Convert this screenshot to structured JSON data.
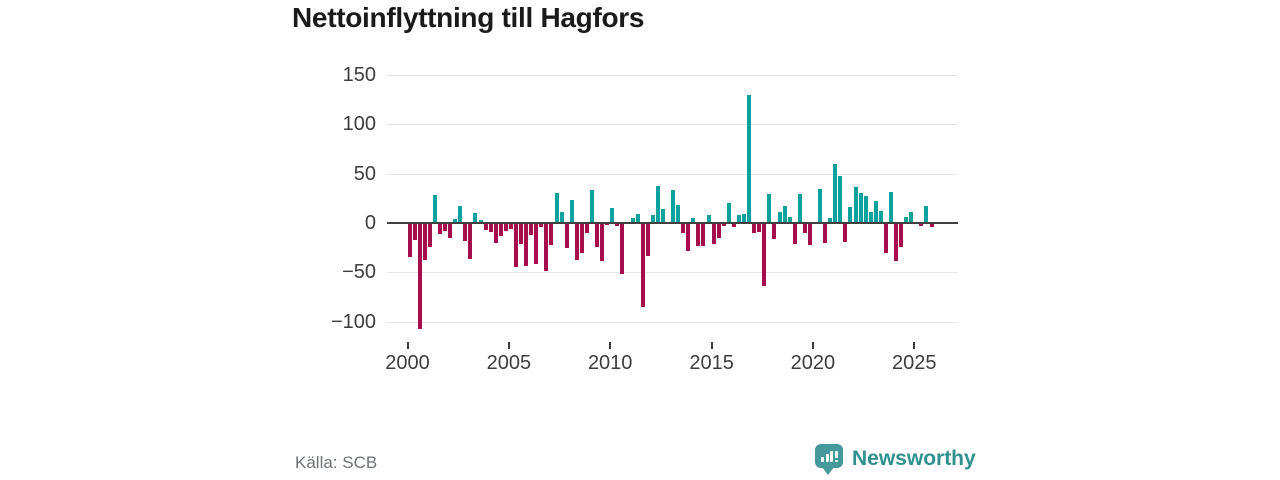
{
  "header": {
    "title": "Nettoinflyttning till Hagfors"
  },
  "footer": {
    "source": "Källa: SCB",
    "brand": "Newsworthy"
  },
  "colors": {
    "positive_bar": "#0ba29d",
    "negative_bar": "#a60d4d",
    "gridline": "#e6e6e6",
    "zero_line": "#404040",
    "axis_text": "#3d3d3d",
    "title_text": "#1a1a1a",
    "source_text": "#6e7278",
    "brand_teal": "#45999b",
    "brand_text_teal": "#2f918e"
  },
  "chart_data": {
    "type": "bar",
    "title": "Nettoinflyttning till Hagfors",
    "xlabel": "",
    "ylabel": "",
    "legend": false,
    "grid": true,
    "ylim": [
      -115,
      155
    ],
    "y_ticks": [
      150,
      100,
      50,
      0,
      -50,
      -100
    ],
    "y_tick_labels": [
      "150",
      "100",
      "50",
      "0",
      "−50",
      "−100"
    ],
    "x_tick_years": [
      2000,
      2005,
      2010,
      2015,
      2020,
      2025
    ],
    "x_tick_labels": [
      "2000",
      "2005",
      "2010",
      "2015",
      "2020",
      "2025"
    ],
    "x": [
      "2000Q1",
      "2000Q2",
      "2000Q3",
      "2000Q4",
      "2001Q1",
      "2001Q2",
      "2001Q3",
      "2001Q4",
      "2002Q1",
      "2002Q2",
      "2002Q3",
      "2002Q4",
      "2003Q1",
      "2003Q2",
      "2003Q3",
      "2003Q4",
      "2004Q1",
      "2004Q2",
      "2004Q3",
      "2004Q4",
      "2005Q1",
      "2005Q2",
      "2005Q3",
      "2005Q4",
      "2006Q1",
      "2006Q2",
      "2006Q3",
      "2006Q4",
      "2007Q1",
      "2007Q2",
      "2007Q3",
      "2007Q4",
      "2008Q1",
      "2008Q2",
      "2008Q3",
      "2008Q4",
      "2009Q1",
      "2009Q2",
      "2009Q3",
      "2009Q4",
      "2010Q1",
      "2010Q2",
      "2010Q3",
      "2010Q4",
      "2011Q1",
      "2011Q2",
      "2011Q3",
      "2011Q4",
      "2012Q1",
      "2012Q2",
      "2012Q3",
      "2012Q4",
      "2013Q1",
      "2013Q2",
      "2013Q3",
      "2013Q4",
      "2014Q1",
      "2014Q2",
      "2014Q3",
      "2014Q4",
      "2015Q1",
      "2015Q2",
      "2015Q3",
      "2015Q4",
      "2016Q1",
      "2016Q2",
      "2016Q3",
      "2016Q4",
      "2017Q1",
      "2017Q2",
      "2017Q3",
      "2017Q4",
      "2018Q1",
      "2018Q2",
      "2018Q3",
      "2018Q4",
      "2019Q1",
      "2019Q2",
      "2019Q3",
      "2019Q4",
      "2020Q1",
      "2020Q2",
      "2020Q3",
      "2020Q4",
      "2021Q1",
      "2021Q2",
      "2021Q3",
      "2021Q4",
      "2022Q1",
      "2022Q2",
      "2022Q3",
      "2022Q4",
      "2023Q1",
      "2023Q2",
      "2023Q3",
      "2023Q4",
      "2024Q1",
      "2024Q2",
      "2024Q3",
      "2024Q4",
      "2025Q1",
      "2025Q2",
      "2025Q3",
      "2025Q4"
    ],
    "values": [
      -34,
      -17,
      -107,
      -37,
      -24,
      28,
      -11,
      -8,
      -15,
      4,
      17,
      -18,
      -36,
      10,
      3,
      -7,
      -9,
      -20,
      -13,
      -8,
      -6,
      -44,
      -21,
      -43,
      -12,
      -41,
      -4,
      -49,
      -22,
      30,
      11,
      -25,
      23,
      -37,
      -30,
      -10,
      33,
      -24,
      -38,
      -2,
      15,
      -3,
      -52,
      0,
      5,
      9,
      -85,
      -33,
      8,
      38,
      14,
      0,
      33,
      18,
      -10,
      -28,
      5,
      -23,
      -23,
      8,
      -21,
      -15,
      -3,
      20,
      -4,
      8,
      9,
      130,
      -10,
      -9,
      -64,
      29,
      -16,
      11,
      17,
      6,
      -21,
      29,
      -10,
      -22,
      0,
      34,
      -20,
      5,
      60,
      48,
      -19,
      16,
      36,
      30,
      27,
      11,
      22,
      12,
      -30,
      31,
      -38,
      -24,
      6,
      11,
      0,
      -3,
      17,
      -4
    ]
  }
}
